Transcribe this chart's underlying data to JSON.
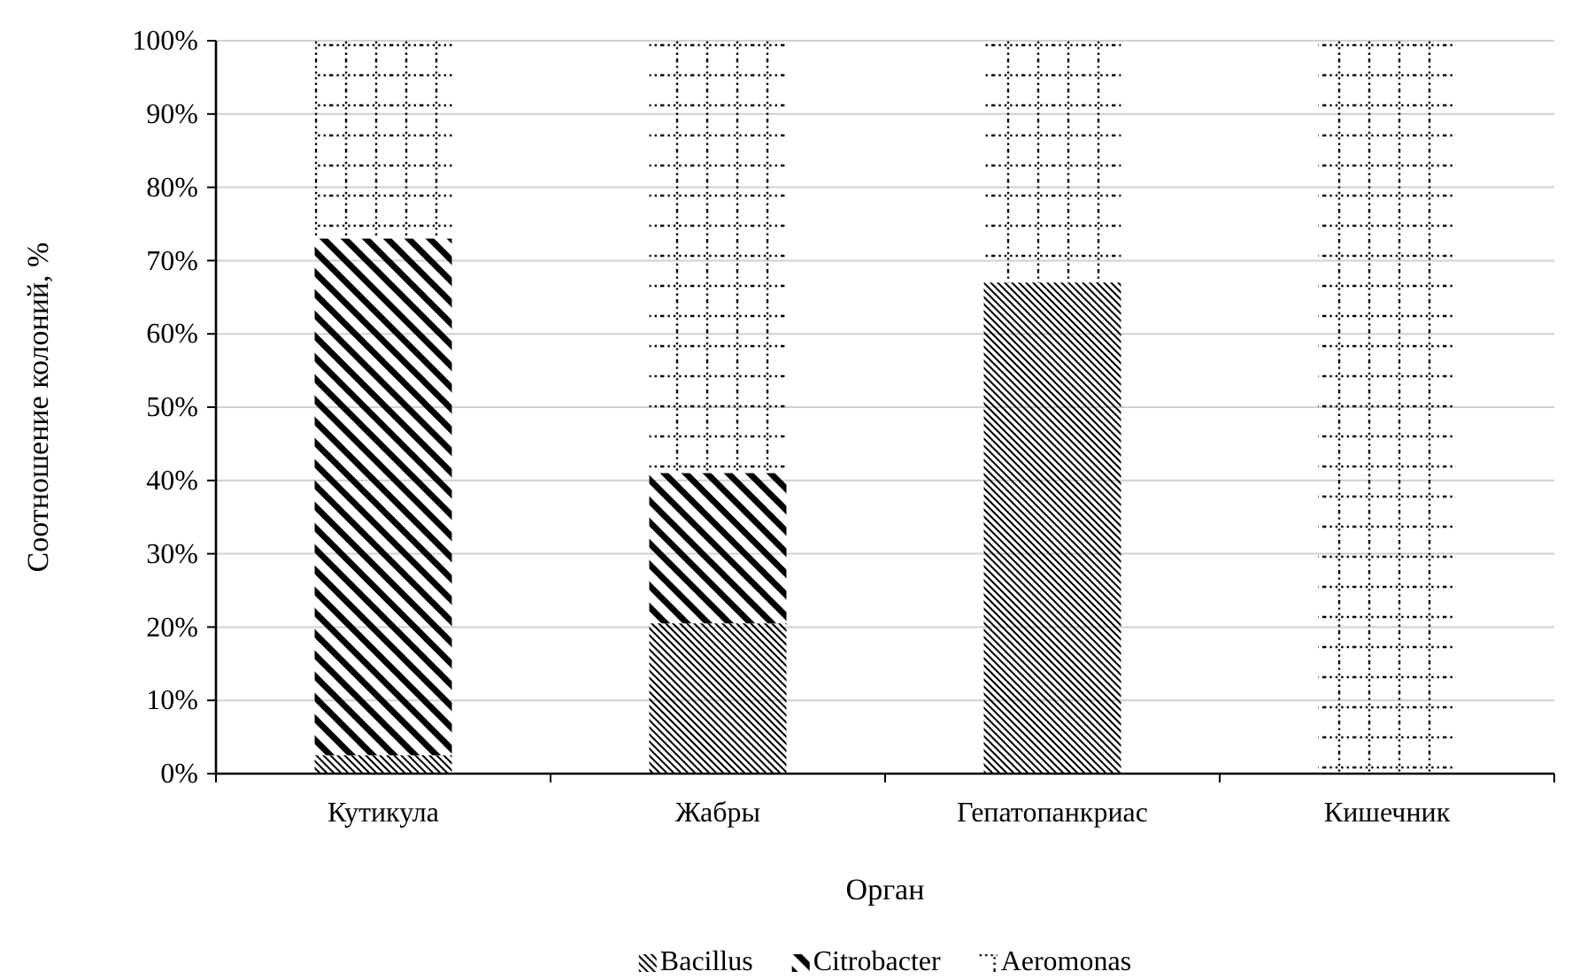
{
  "chart_data": {
    "type": "bar",
    "stacked": true,
    "xlabel": "Орган",
    "ylabel": "Соотношение колоний, %",
    "categories": [
      "Кутикула",
      "Жабры",
      "Гепатопанкриас",
      "Кишечник"
    ],
    "series": [
      {
        "name": "Bacillus",
        "color": "#000000",
        "values": [
          2.5,
          20.5,
          67,
          0
        ]
      },
      {
        "name": "Citrobacter",
        "color": "#000000",
        "values": [
          70.5,
          20.5,
          0,
          0
        ]
      },
      {
        "name": "Aeromonas",
        "color": "#000000",
        "values": [
          27,
          59,
          33,
          100
        ]
      }
    ],
    "ylim": [
      0,
      100
    ],
    "yticks": [
      {
        "value": 0,
        "label": "0%"
      },
      {
        "value": 10,
        "label": "10%"
      },
      {
        "value": 20,
        "label": "20%"
      },
      {
        "value": 30,
        "label": "30%"
      },
      {
        "value": 40,
        "label": "40%"
      },
      {
        "value": 50,
        "label": "50%"
      },
      {
        "value": 60,
        "label": "60%"
      },
      {
        "value": 70,
        "label": "70%"
      },
      {
        "value": 80,
        "label": "80%"
      },
      {
        "value": 90,
        "label": "90%"
      },
      {
        "value": 100,
        "label": "100%"
      }
    ],
    "grid": "y",
    "legend": "bottom"
  }
}
